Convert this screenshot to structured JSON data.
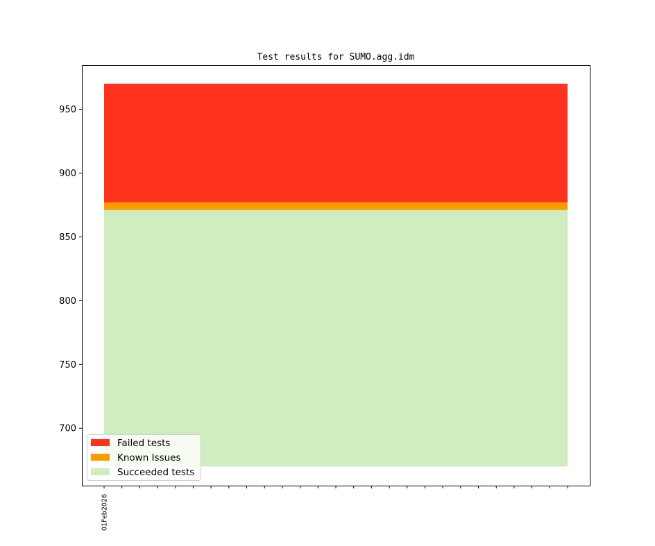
{
  "chart_data": {
    "type": "area",
    "stacked": true,
    "title": "Test results for SUMO.agg.idm",
    "xlabel": "",
    "ylabel": "",
    "x_tick_labels": [
      "01Feb2026"
    ],
    "x_tick_count": 27,
    "ylim": [
      655,
      984
    ],
    "yticks": [
      700,
      750,
      800,
      850,
      900,
      950
    ],
    "grid": false,
    "legend_position": "lower-left",
    "baseline": 670,
    "series": [
      {
        "name": "Failed tests",
        "color": "#ff331c",
        "lower": 877,
        "upper": 970
      },
      {
        "name": "Known Issues",
        "color": "#ff9900",
        "lower": 871,
        "upper": 877
      },
      {
        "name": "Succeeded tests",
        "color": "#cfedbe",
        "lower": 670,
        "upper": 871
      }
    ]
  }
}
